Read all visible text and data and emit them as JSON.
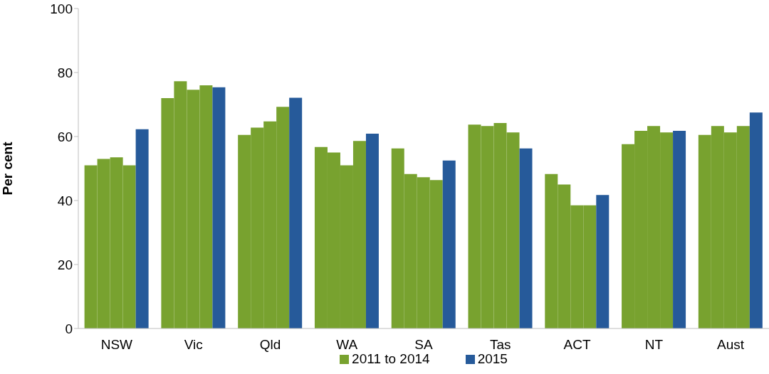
{
  "chart_data": {
    "type": "bar",
    "ylabel": "Per cent",
    "categories": [
      "NSW",
      "Vic",
      "Qld",
      "WA",
      "SA",
      "Tas",
      "ACT",
      "NT",
      "Aust"
    ],
    "series": [
      {
        "name": "2011 to 2014",
        "color": "#78a22f",
        "values": [
          51,
          72,
          60.5,
          56.7,
          56.3,
          63.7,
          48.3,
          57.6,
          60.5
        ]
      },
      {
        "color": "#78a22f",
        "values": [
          53,
          77.3,
          62.8,
          55,
          48.3,
          63.3,
          45,
          61.8,
          63.3
        ]
      },
      {
        "color": "#78a22f",
        "values": [
          53.5,
          74.6,
          64.7,
          51,
          47.3,
          64.2,
          38.5,
          63.3,
          61.3
        ]
      },
      {
        "color": "#78a22f",
        "values": [
          51,
          76,
          69.3,
          58.6,
          46.4,
          61.3,
          38.5,
          61.3,
          63.3
        ]
      },
      {
        "name": "2015",
        "color": "#265a9a",
        "values": [
          62.3,
          75.4,
          72.1,
          60.9,
          52.5,
          56.3,
          41.7,
          61.8,
          67.5
        ]
      }
    ],
    "ylim": [
      0,
      100
    ],
    "yticks": [
      0,
      20,
      40,
      60,
      80,
      100
    ],
    "grid": false,
    "legend": "bottom"
  }
}
